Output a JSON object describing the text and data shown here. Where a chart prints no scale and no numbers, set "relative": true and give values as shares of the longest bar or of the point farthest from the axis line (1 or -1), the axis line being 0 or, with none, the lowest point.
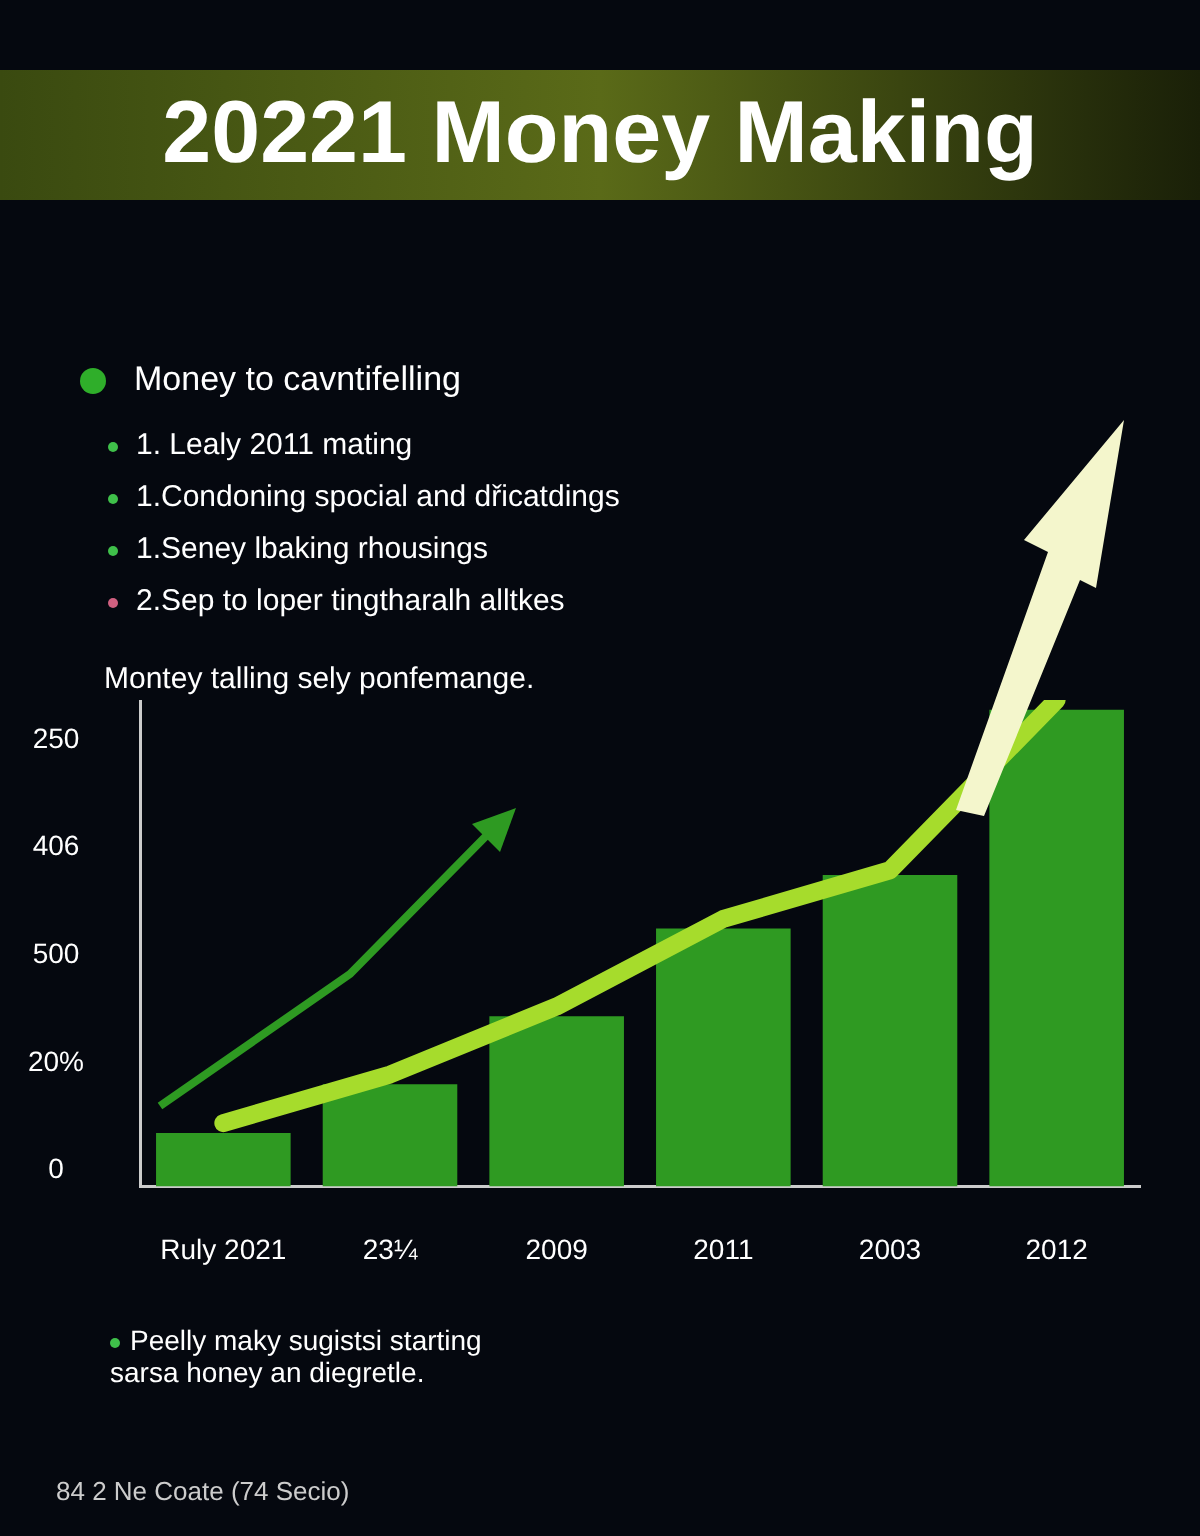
{
  "chart_data": {
    "type": "bar",
    "title": "20221 Money Making",
    "relative": true,
    "categories": [
      "Ruly 2021",
      "23¼",
      "2009",
      "2011",
      "2003",
      "2012"
    ],
    "series": [
      {
        "type": "bar",
        "color": "#2f9a22",
        "values": [
          0.11,
          0.21,
          0.35,
          0.53,
          0.64,
          0.98
        ]
      },
      {
        "type": "line",
        "color": "#a6dc2c",
        "values": [
          0.13,
          0.23,
          0.37,
          0.55,
          0.65,
          1
        ]
      }
    ],
    "annotations": [
      "Money to cavntifelling",
      "1. Lealy 2011 mating",
      "1.Condoning spocial and dřicatdings",
      "1.Seney lbaking rhousings",
      "2.Sep to loper tingtharalh alltkes",
      "Montey talling sely ponfemange.",
      "Peelly maky sugistsi starting sarsa honey an diegretle.",
      "84 2 Ne Coate (74 Secio)",
      "250",
      "406",
      "500",
      "20%",
      "0"
    ],
    "grid": false,
    "legend": false
  }
}
